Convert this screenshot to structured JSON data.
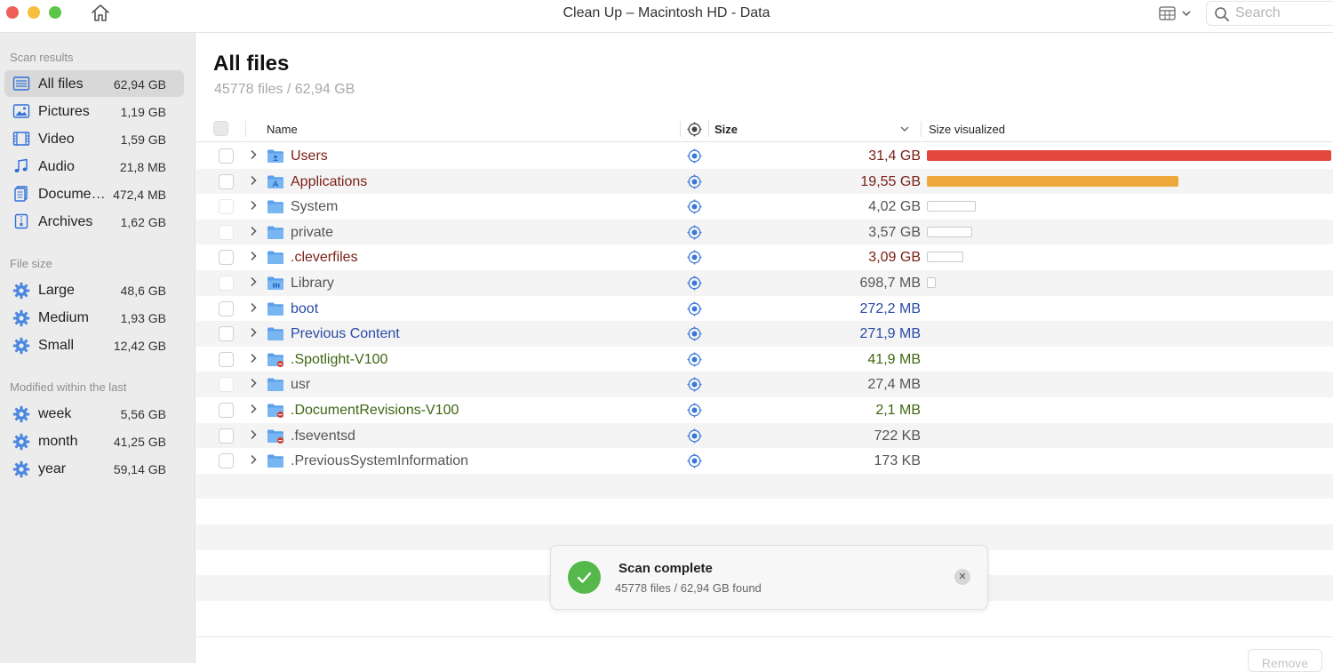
{
  "window": {
    "title": "Clean Up – Macintosh HD - Data",
    "search_placeholder": "Search"
  },
  "sidebar": {
    "sections": [
      {
        "title": "Scan results",
        "items": [
          {
            "label": "All files",
            "value": "62,94 GB",
            "icon": "all-files-icon",
            "active": true
          },
          {
            "label": "Pictures",
            "value": "1,19 GB",
            "icon": "pictures-icon"
          },
          {
            "label": "Video",
            "value": "1,59 GB",
            "icon": "video-icon"
          },
          {
            "label": "Audio",
            "value": "21,8 MB",
            "icon": "audio-icon"
          },
          {
            "label": "Docume…",
            "value": "472,4 MB",
            "icon": "documents-icon"
          },
          {
            "label": "Archives",
            "value": "1,62 GB",
            "icon": "archives-icon"
          }
        ]
      },
      {
        "title": "File size",
        "items": [
          {
            "label": "Large",
            "value": "48,6 GB",
            "icon": "gear-icon"
          },
          {
            "label": "Medium",
            "value": "1,93 GB",
            "icon": "gear-icon"
          },
          {
            "label": "Small",
            "value": "12,42 GB",
            "icon": "gear-icon"
          }
        ]
      },
      {
        "title": "Modified within the last",
        "items": [
          {
            "label": "week",
            "value": "5,56 GB",
            "icon": "gear-icon"
          },
          {
            "label": "month",
            "value": "41,25 GB",
            "icon": "gear-icon"
          },
          {
            "label": "year",
            "value": "59,14 GB",
            "icon": "gear-icon"
          }
        ]
      }
    ]
  },
  "main": {
    "title": "All files",
    "subtitle": "45778 files / 62,94 GB",
    "columns": {
      "name": "Name",
      "size": "Size",
      "visualized": "Size visualized"
    },
    "rows": [
      {
        "name": "Users",
        "size": "31,4 GB",
        "color": "red",
        "bar_fraction": 1.0,
        "bar_color": "#e2483d",
        "folder": "user",
        "checkbox": "normal"
      },
      {
        "name": "Applications",
        "size": "19,55 GB",
        "color": "red",
        "bar_fraction": 0.623,
        "bar_color": "#eda83a",
        "folder": "apps",
        "checkbox": "normal"
      },
      {
        "name": "System",
        "size": "4,02 GB",
        "color": "gray",
        "bar_fraction": 0.12,
        "bar_color": "",
        "folder": "plain",
        "checkbox": "faint"
      },
      {
        "name": "private",
        "size": "3,57 GB",
        "color": "gray",
        "bar_fraction": 0.112,
        "bar_color": "",
        "folder": "plain",
        "checkbox": "faint"
      },
      {
        "name": ".cleverfiles",
        "size": "3,09 GB",
        "color": "red",
        "bar_fraction": 0.091,
        "bar_color": "",
        "folder": "plain",
        "checkbox": "normal"
      },
      {
        "name": "Library",
        "size": "698,7 MB",
        "color": "gray",
        "bar_fraction": 0.022,
        "bar_color": "",
        "folder": "lib",
        "checkbox": "faint"
      },
      {
        "name": "boot",
        "size": "272,2 MB",
        "color": "blue",
        "bar_fraction": 0,
        "bar_color": "",
        "folder": "plain",
        "checkbox": "normal"
      },
      {
        "name": "Previous Content",
        "size": "271,9 MB",
        "color": "blue",
        "bar_fraction": 0,
        "bar_color": "",
        "folder": "plain",
        "checkbox": "normal"
      },
      {
        "name": ".Spotlight-V100",
        "size": "41,9 MB",
        "color": "green",
        "bar_fraction": 0,
        "bar_color": "",
        "folder": "locked",
        "checkbox": "normal"
      },
      {
        "name": "usr",
        "size": "27,4 MB",
        "color": "gray",
        "bar_fraction": 0,
        "bar_color": "",
        "folder": "plain",
        "checkbox": "faint"
      },
      {
        "name": ".DocumentRevisions-V100",
        "size": "2,1 MB",
        "color": "green",
        "bar_fraction": 0,
        "bar_color": "",
        "folder": "locked",
        "checkbox": "normal"
      },
      {
        "name": ".fseventsd",
        "size": "722 KB",
        "color": "gray",
        "bar_fraction": 0,
        "bar_color": "",
        "folder": "locked",
        "checkbox": "normal"
      },
      {
        "name": ".PreviousSystemInformation",
        "size": "173 KB",
        "color": "gray",
        "bar_fraction": 0,
        "bar_color": "",
        "folder": "plain",
        "checkbox": "normal"
      }
    ],
    "remove_label": "Remove"
  },
  "toast": {
    "title": "Scan complete",
    "message": "45778 files / 62,94 GB found",
    "close": "✕"
  }
}
